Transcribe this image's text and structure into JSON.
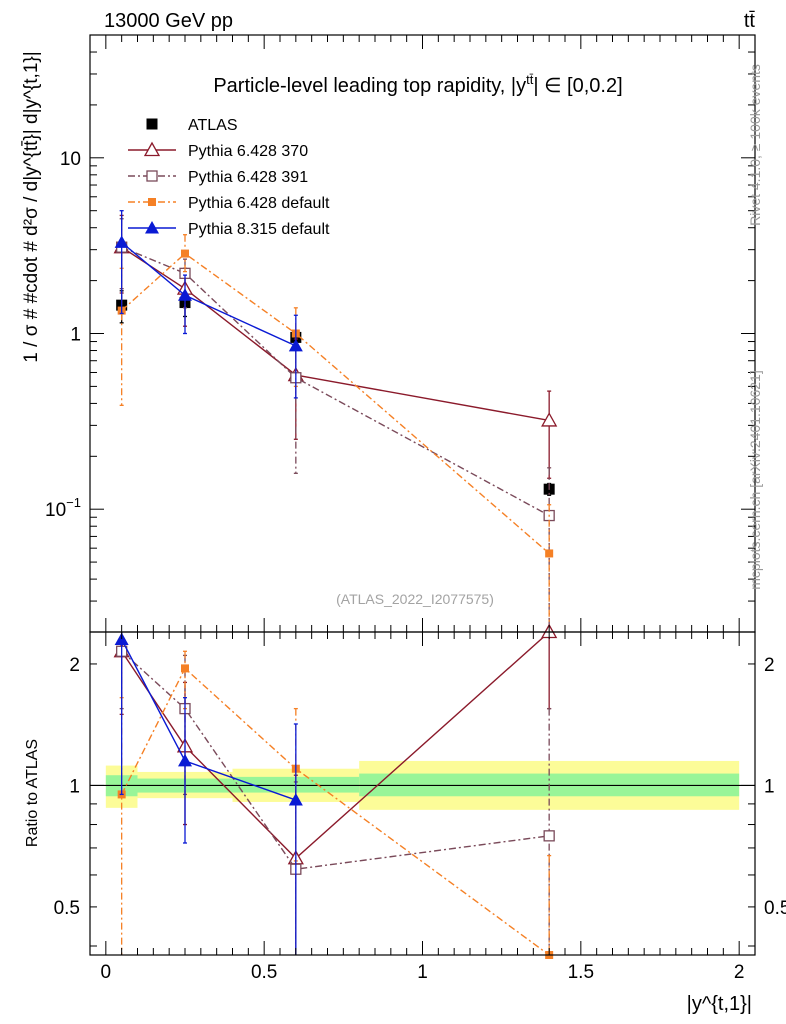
{
  "header": {
    "beam_label": "13000 GeV pp",
    "process_label": "tt̄",
    "top_title": "Particle-level leading top rapidity, |y",
    "top_title_sup": "tt̄",
    "top_title_tail": "| ∈ [0,0.2]",
    "watermark": "(ATLAS_2022_I2077575)",
    "rivet_label": "Rivet 4.1.0, ≥ 100k events",
    "mcplots_label": "mcplots.cern.ch [arXiv:2401.10621]"
  },
  "colors": {
    "ATLAS": "#000000",
    "Pythia 6.428 370": "#8b1a2b",
    "Pythia 6.428 391": "#7a4a5a",
    "Pythia 6.428 default": "#f58025",
    "Pythia 8.315 default": "#0a1ad4",
    "band_inner": "#98f598",
    "band_outer": "#fcfc98"
  },
  "chart_data": [
    {
      "type": "line",
      "panel": "main",
      "ylabel": "1 / σ # #cdot # d²σ / d|y^{tt̄}| d|y^{t,1}|",
      "ylim": [
        0.02,
        50
      ],
      "yscale": "log",
      "xlim": [
        -0.05,
        2.05
      ],
      "yticks": [
        {
          "v": 0.1,
          "base": "10",
          "exp": "−1"
        },
        {
          "v": 1,
          "base": "1",
          "exp": ""
        },
        {
          "v": 10,
          "base": "10",
          "exp": ""
        }
      ],
      "series": [
        {
          "name": "ATLAS",
          "marker": "square-filled",
          "line": "none",
          "x": [
            0.05,
            0.25,
            0.6,
            1.4
          ],
          "y": [
            1.45,
            1.5,
            0.95,
            0.13
          ],
          "err": [
            [
              0.3,
              0.3
            ],
            [
              0.25,
              0.25
            ],
            [
              0.05,
              0.05
            ],
            [
              0.01,
              0.01
            ]
          ]
        },
        {
          "name": "Pythia 6.428 370",
          "marker": "triangle-open",
          "line": "solid",
          "x": [
            0.05,
            0.25,
            0.6,
            1.4
          ],
          "y": [
            3.1,
            1.8,
            0.58,
            0.32
          ],
          "err": [
            [
              1.4,
              1.6
            ],
            [
              0.7,
              0.55
            ],
            [
              0.33,
              0.35
            ],
            [
              0.17,
              0.15
            ]
          ]
        },
        {
          "name": "Pythia 6.428 391",
          "marker": "square-open",
          "line": "dashdot",
          "x": [
            0.05,
            0.25,
            0.6,
            1.4
          ],
          "y": [
            3.1,
            2.2,
            0.56,
            0.092
          ],
          "err": [
            [
              1.3,
              1.4
            ],
            [
              0.8,
              0.45
            ],
            [
              0.4,
              0.4
            ],
            [
              0.08,
              0.08
            ]
          ]
        },
        {
          "name": "Pythia 6.428 default",
          "marker": "square-small-filled",
          "line": "dashdot",
          "x": [
            0.05,
            0.25,
            0.6,
            1.4
          ],
          "y": [
            1.35,
            2.85,
            1.0,
            0.056
          ],
          "err": [
            [
              0.96,
              1.0
            ],
            [
              0.6,
              0.8
            ],
            [
              0.5,
              0.4
            ],
            [
              0.05,
              0.05
            ]
          ]
        },
        {
          "name": "Pythia 8.315 default",
          "marker": "triangle-filled",
          "line": "solid",
          "x": [
            0.05,
            0.25,
            0.6,
            1.4
          ],
          "y": [
            3.3,
            1.65,
            0.85,
            null
          ],
          "err": [
            [
              2.0,
              1.7
            ],
            [
              0.65,
              0.5
            ],
            [
              0.42,
              0.42
            ],
            [
              0,
              0
            ]
          ]
        }
      ]
    },
    {
      "type": "line",
      "panel": "ratio",
      "xlabel": "|y^{t,1}|",
      "ylabel": "Ratio to ATLAS",
      "ylim": [
        0.38,
        2.4
      ],
      "yscale": "log",
      "xlim": [
        -0.05,
        2.05
      ],
      "xticks": [
        {
          "v": 0,
          "label": "0"
        },
        {
          "v": 0.5,
          "label": "0.5"
        },
        {
          "v": 1,
          "label": "1"
        },
        {
          "v": 1.5,
          "label": "1.5"
        },
        {
          "v": 2,
          "label": "2"
        }
      ],
      "yticks": [
        {
          "v": 0.5,
          "label": "0.5"
        },
        {
          "v": 1,
          "label": "1"
        },
        {
          "v": 2,
          "label": "2"
        }
      ],
      "bands": [
        {
          "x0": 0.0,
          "x1": 0.1,
          "inner": [
            0.94,
            1.06
          ],
          "outer": [
            0.88,
            1.12
          ]
        },
        {
          "x0": 0.1,
          "x1": 0.4,
          "inner": [
            0.96,
            1.04
          ],
          "outer": [
            0.93,
            1.08
          ]
        },
        {
          "x0": 0.4,
          "x1": 0.8,
          "inner": [
            0.96,
            1.05
          ],
          "outer": [
            0.91,
            1.1
          ]
        },
        {
          "x0": 0.8,
          "x1": 2.0,
          "inner": [
            0.94,
            1.07
          ],
          "outer": [
            0.87,
            1.15
          ]
        }
      ],
      "series": [
        {
          "name": "Pythia 6.428 370",
          "marker": "triangle-open",
          "line": "solid",
          "x": [
            0.05,
            0.25,
            0.6,
            1.4
          ],
          "y": [
            2.15,
            1.25,
            0.66,
            2.45
          ],
          "err": [
            [
              0.65,
              0.8
            ],
            [
              0.45,
              0.55
            ],
            [
              0.45,
              0.4
            ],
            [
              0.9,
              0.2
            ]
          ]
        },
        {
          "name": "Pythia 6.428 391",
          "marker": "square-open",
          "line": "dashdot",
          "x": [
            0.05,
            0.25,
            0.6,
            1.4
          ],
          "y": [
            2.15,
            1.55,
            0.62,
            0.75
          ],
          "err": [
            [
              0.6,
              0.9
            ],
            [
              0.6,
              0.55
            ],
            [
              0.35,
              0.4
            ],
            [
              0.55,
              0.8
            ]
          ]
        },
        {
          "name": "Pythia 6.428 default",
          "marker": "square-small-filled",
          "line": "dashdot",
          "x": [
            0.05,
            0.25,
            0.6,
            1.4
          ],
          "y": [
            0.95,
            1.95,
            1.1,
            0.37
          ],
          "err": [
            [
              0.6,
              0.7
            ],
            [
              0.4,
              0.2
            ],
            [
              0.45,
              0.45
            ],
            [
              0.3,
              0.3
            ]
          ]
        },
        {
          "name": "Pythia 8.315 default",
          "marker": "triangle-filled",
          "line": "solid",
          "x": [
            0.05,
            0.25,
            0.6
          ],
          "y": [
            2.3,
            1.15,
            0.92
          ],
          "err": [
            [
              1.35,
              0.2
            ],
            [
              0.43,
              0.5
            ],
            [
              0.55,
              0.5
            ]
          ]
        }
      ]
    }
  ]
}
